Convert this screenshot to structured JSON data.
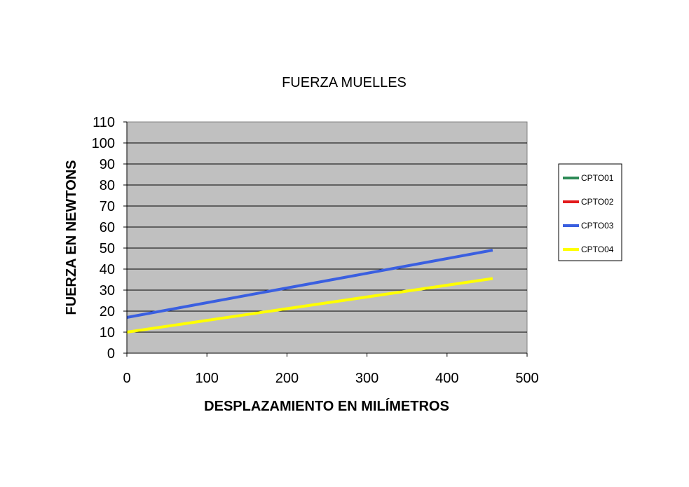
{
  "chart_data": {
    "type": "line",
    "title": "FUERZA MUELLES",
    "xlabel": "DESPLAZAMIENTO EN MILÍMETROS",
    "ylabel": "FUERZA EN NEWTONS",
    "xlim": [
      0,
      500
    ],
    "ylim": [
      0,
      110
    ],
    "x_ticks": [
      0,
      100,
      200,
      300,
      400,
      500
    ],
    "y_ticks": [
      0,
      10,
      20,
      30,
      40,
      50,
      60,
      70,
      80,
      90,
      100,
      110
    ],
    "grid": "horizontal",
    "plot_background": "#c0c0c0",
    "legend_position": "right",
    "series": [
      {
        "name": "CPTO01",
        "color": "#2e8b57",
        "points": []
      },
      {
        "name": "CPTO02",
        "color": "#e31a1c",
        "points": []
      },
      {
        "name": "CPTO03",
        "color": "#3a5fe0",
        "points": [
          [
            0,
            17
          ],
          [
            457,
            49
          ]
        ]
      },
      {
        "name": "CPTO04",
        "color": "#ffff00",
        "points": [
          [
            0,
            10
          ],
          [
            457,
            35.5
          ]
        ]
      }
    ]
  }
}
